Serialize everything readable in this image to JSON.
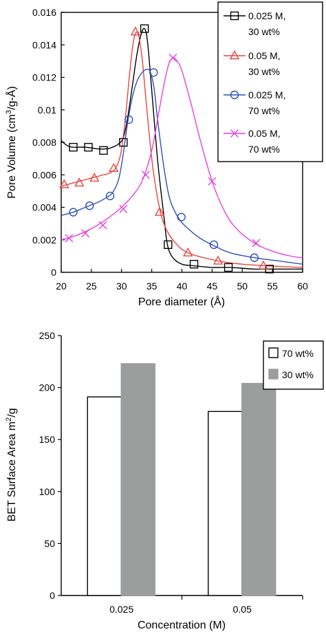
{
  "chart_data": [
    {
      "type": "line",
      "title": "",
      "xlabel": "Pore diameter (Å)",
      "ylabel_parts": [
        "Pore Volume (cm",
        "3",
        "/g-Å)"
      ],
      "xlim": [
        20,
        60
      ],
      "ylim": [
        0,
        0.016
      ],
      "xticks": [
        "20",
        "25",
        "30",
        "35",
        "40",
        "45",
        "50",
        "55",
        "60"
      ],
      "xtick_values": [
        20,
        25,
        30,
        35,
        40,
        45,
        50,
        55,
        60
      ],
      "yticks": [
        "0",
        "0.002",
        "0.004",
        "0.006",
        "0.008",
        "0.01",
        "0.012",
        "0.014",
        "0.016"
      ],
      "ytick_values": [
        0,
        0.002,
        0.004,
        0.006,
        0.008,
        0.01,
        0.012,
        0.014,
        0.016
      ],
      "grid": false,
      "legend_position": "top-right",
      "series": [
        {
          "name_line1": "0.025 M,",
          "name_line2": "30 wt%",
          "color": "#000000",
          "marker": "square",
          "curve_x": [
            20,
            21,
            22,
            24,
            26,
            27.5,
            28.5,
            29.5,
            30.3,
            31,
            31.8,
            32.5,
            33.2,
            33.8,
            34.3,
            35,
            36,
            37,
            37.6,
            38.5,
            40,
            42,
            45,
            48,
            52,
            56,
            60
          ],
          "curve_y": [
            0.0081,
            0.0078,
            0.0077,
            0.0077,
            0.0076,
            0.0076,
            0.0077,
            0.0079,
            0.0083,
            0.0095,
            0.0115,
            0.0133,
            0.0146,
            0.015,
            0.0142,
            0.0112,
            0.0068,
            0.0035,
            0.0017,
            0.0009,
            0.0005,
            0.0004,
            0.0003,
            0.0003,
            0.0002,
            0.0002,
            0.0002
          ],
          "marker_x": [
            22,
            24.5,
            27,
            30.3,
            33.8,
            37.7,
            42,
            47.7,
            54.5
          ],
          "marker_y": [
            0.0077,
            0.0077,
            0.0075,
            0.008,
            0.015,
            0.0017,
            0.0005,
            0.0003,
            0.0002
          ]
        },
        {
          "name_line1": "0.05 M,",
          "name_line2": "30 wt%",
          "color": "#e8453c",
          "marker": "triangle",
          "curve_x": [
            20,
            21,
            23,
            25,
            27,
            28,
            29,
            29.8,
            30.5,
            31.2,
            31.8,
            32.3,
            32.8,
            33.4,
            34,
            35,
            36,
            37,
            38.5,
            41,
            46,
            50,
            54,
            60
          ],
          "curve_y": [
            0.0053,
            0.0054,
            0.0056,
            0.0058,
            0.006,
            0.0061,
            0.0064,
            0.0072,
            0.009,
            0.0117,
            0.0138,
            0.0147,
            0.0146,
            0.0132,
            0.0108,
            0.007,
            0.0045,
            0.003,
            0.002,
            0.0012,
            0.0007,
            0.0005,
            0.0004,
            0.0003
          ],
          "marker_x": [
            20.5,
            23,
            25.5,
            28.7,
            32.3,
            36.3,
            41,
            46,
            53.5
          ],
          "marker_y": [
            0.0054,
            0.0055,
            0.0058,
            0.0064,
            0.0148,
            0.0037,
            0.0012,
            0.0007,
            0.0004
          ]
        },
        {
          "name_line1": "0.025 M,",
          "name_line2": "70 wt%",
          "color": "#2f4fb5",
          "marker": "circle",
          "curve_x": [
            20,
            22,
            24,
            26,
            27.5,
            28.5,
            29.5,
            30.2,
            31,
            31.8,
            32.6,
            33.4,
            34.2,
            34.8,
            35.4,
            36,
            37,
            38,
            39.5,
            41,
            43,
            45.5,
            48,
            52,
            56,
            60
          ],
          "curve_y": [
            0.0035,
            0.0037,
            0.004,
            0.0043,
            0.0046,
            0.0049,
            0.0057,
            0.0071,
            0.0092,
            0.0108,
            0.0118,
            0.0123,
            0.0125,
            0.0123,
            0.0113,
            0.0093,
            0.0065,
            0.0045,
            0.0033,
            0.0027,
            0.0021,
            0.0016,
            0.0012,
            0.0009,
            0.0007,
            0.0005
          ],
          "marker_x": [
            22,
            24.7,
            28.1,
            31.2,
            35.3,
            39.9,
            45.3,
            52
          ],
          "marker_y": [
            0.0037,
            0.0041,
            0.0047,
            0.0094,
            0.0123,
            0.0034,
            0.0017,
            0.0009
          ]
        },
        {
          "name_line1": "0.05 M,",
          "name_line2": "70 wt%",
          "color": "#e83fe0",
          "marker": "x",
          "curve_x": [
            20,
            22,
            24,
            26,
            28,
            30,
            32,
            33.5,
            35,
            36,
            37,
            37.8,
            38.5,
            39.2,
            40,
            41.5,
            43,
            45,
            47,
            49,
            52,
            55,
            58,
            60
          ],
          "curve_y": [
            0.002,
            0.0022,
            0.0025,
            0.0029,
            0.0034,
            0.004,
            0.0048,
            0.0057,
            0.0075,
            0.0095,
            0.0115,
            0.0128,
            0.0132,
            0.013,
            0.0124,
            0.0104,
            0.0082,
            0.0056,
            0.0038,
            0.0027,
            0.0018,
            0.0013,
            0.001,
            0.0009
          ],
          "marker_x": [
            21.3,
            24,
            26.9,
            30.3,
            34,
            38.5,
            45,
            52.3
          ],
          "marker_y": [
            0.0021,
            0.0024,
            0.0029,
            0.0039,
            0.006,
            0.0132,
            0.0056,
            0.0018
          ]
        }
      ]
    },
    {
      "type": "bar",
      "title": "",
      "xlabel": "Concentration (M)",
      "ylabel_parts": [
        "BET Surface Area m",
        "2",
        "/g"
      ],
      "categories": [
        "0.025",
        "0.05"
      ],
      "ylim": [
        0,
        250
      ],
      "yticks": [
        "0",
        "50",
        "100",
        "150",
        "200",
        "250"
      ],
      "ytick_values": [
        0,
        50,
        100,
        150,
        200,
        250
      ],
      "grid": false,
      "legend_position": "top-right",
      "series": [
        {
          "name": "70 wt%",
          "color": "#ffffff",
          "stroke": "#000000",
          "values": [
            191,
            177
          ]
        },
        {
          "name": "30 wt%",
          "color": "#9b9e9c",
          "stroke": "#9b9e9c",
          "values": [
            223,
            204
          ]
        }
      ]
    }
  ]
}
